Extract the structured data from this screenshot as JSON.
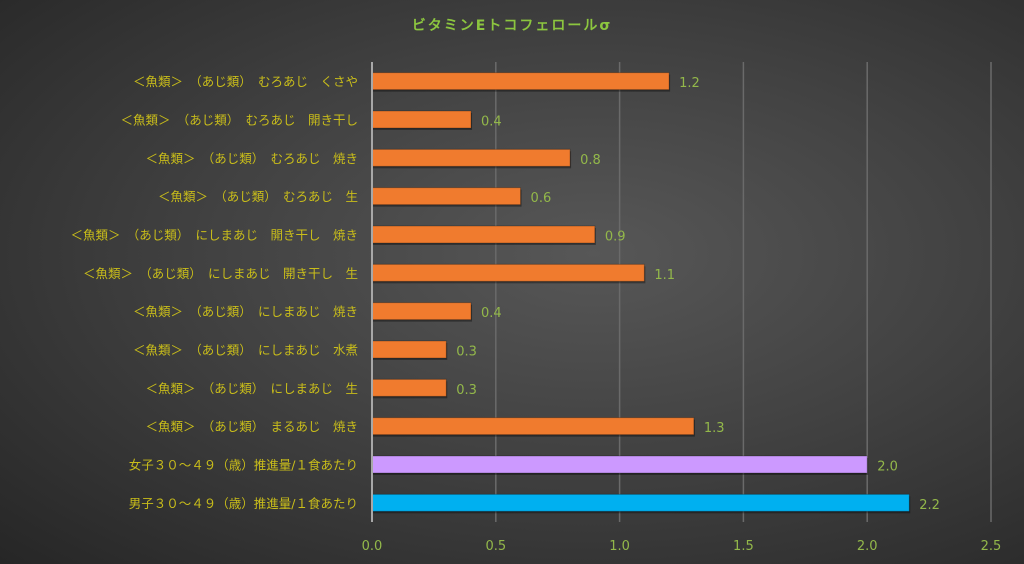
{
  "chart_data": {
    "type": "bar",
    "orientation": "horizontal",
    "title": "ビタミンEトコフェロールσ",
    "xlabel": "",
    "ylabel": "",
    "xlim": [
      0,
      2.5
    ],
    "xticks": [
      "0.0",
      "0.5",
      "1.0",
      "1.5",
      "2.0",
      "2.5"
    ],
    "grid": true,
    "legend": "none",
    "categories": [
      "＜魚類＞　（あじ類）　むろあじ　くさや",
      "＜魚類＞　（あじ類）　むろあじ　開き干し",
      "＜魚類＞　（あじ類）　むろあじ　焼き",
      "＜魚類＞　（あじ類）　むろあじ　生",
      "＜魚類＞　（あじ類）　にしまあじ　開き干し　焼き",
      "＜魚類＞　（あじ類）　にしまあじ　開き干し　生",
      "＜魚類＞　（あじ類）　にしまあじ　焼き",
      "＜魚類＞　（あじ類）　にしまあじ　水煮",
      "＜魚類＞　（あじ類）　にしまあじ　生",
      "＜魚類＞　（あじ類）　まるあじ　焼き",
      "女子３０～４９（歳）推進量/１食あたり",
      "男子３０～４９（歳）推進量/１食あたり"
    ],
    "values": [
      1.2,
      0.4,
      0.8,
      0.6,
      0.9,
      1.1,
      0.4,
      0.3,
      0.3,
      1.3,
      2.0,
      2.17
    ],
    "data_labels": [
      "1.2",
      "0.4",
      "0.8",
      "0.6",
      "0.9",
      "1.1",
      "0.4",
      "0.3",
      "0.3",
      "1.3",
      "2.0",
      "2.2"
    ],
    "colors": [
      "#f07b2e",
      "#f07b2e",
      "#f07b2e",
      "#f07b2e",
      "#f07b2e",
      "#f07b2e",
      "#f07b2e",
      "#f07b2e",
      "#f07b2e",
      "#f07b2e",
      "#cc99ff",
      "#00b0f0"
    ]
  }
}
